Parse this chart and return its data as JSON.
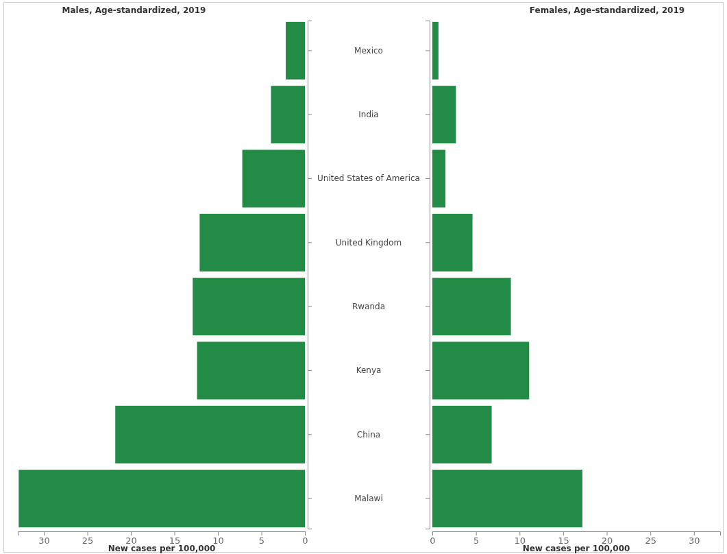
{
  "chart_data": [
    {
      "type": "bar",
      "orientation": "horizontal",
      "title": "Males, Age-standardized, 2019",
      "xlabel": "New cases per 100,000",
      "categories": [
        "Mexico",
        "India",
        "United States of America",
        "United Kingdom",
        "Rwanda",
        "Kenya",
        "China",
        "Malawi"
      ],
      "values": [
        2.2,
        3.9,
        7.2,
        12.1,
        12.9,
        12.4,
        21.8,
        32.9
      ],
      "color": "#228b45",
      "xlim": [
        33,
        0
      ],
      "xticks": [
        30,
        25,
        20,
        15,
        10,
        5,
        0
      ],
      "grid": false
    },
    {
      "type": "bar",
      "orientation": "horizontal",
      "title": "Females, Age-standardized, 2019",
      "xlabel": "New cases per 100,000",
      "categories": [
        null,
        null,
        null,
        null,
        null,
        null,
        null,
        null
      ],
      "values": [
        0.7,
        2.7,
        1.5,
        4.6,
        9.0,
        11.1,
        6.8,
        17.2
      ],
      "color": "#228b45",
      "xlim": [
        0,
        33
      ],
      "xticks": [
        0,
        5,
        10,
        15,
        20,
        25,
        30
      ],
      "grid": false
    }
  ]
}
